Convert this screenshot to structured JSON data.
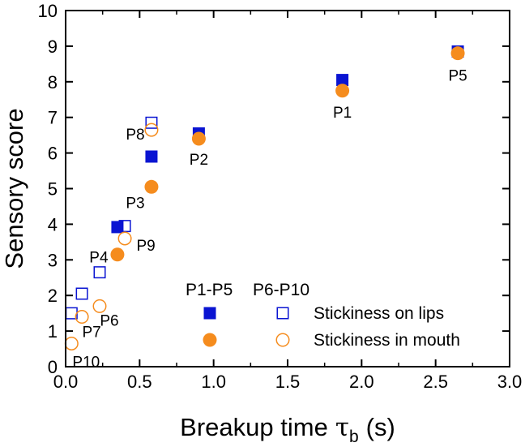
{
  "chart_data": {
    "type": "scatter",
    "xlabel": "Breakup time",
    "xlabel_symbol": "τ",
    "xlabel_subscript": "b",
    "xlabel_unit": "(s)",
    "ylabel": "Sensory score",
    "xlim": [
      0.0,
      3.0
    ],
    "ylim": [
      0,
      10
    ],
    "x_ticks": [
      "0.0",
      "0.5",
      "1.0",
      "1.5",
      "2.0",
      "2.5",
      "3.0"
    ],
    "y_ticks": [
      "0",
      "1",
      "2",
      "3",
      "4",
      "5",
      "6",
      "7",
      "8",
      "9",
      "10"
    ],
    "grid": false,
    "legend": {
      "position": "bottom-right",
      "group_headers": [
        "P1-P5",
        "P6-P10"
      ],
      "entries": [
        {
          "label": "Stickiness on lips",
          "marker": "square"
        },
        {
          "label": "Stickiness in mouth",
          "marker": "circle"
        }
      ]
    },
    "colors": {
      "lips": "#0a14d2",
      "mouth": "#f58c1e"
    },
    "series": [
      {
        "name": "Stickiness on lips",
        "group": "P1-P5",
        "marker": "square-filled",
        "points": [
          {
            "label": "P1",
            "x": 1.87,
            "y": 8.05
          },
          {
            "label": "P2",
            "x": 0.9,
            "y": 6.55
          },
          {
            "label": "P3",
            "x": 0.58,
            "y": 5.9
          },
          {
            "label": "P4",
            "x": 0.35,
            "y": 3.92
          },
          {
            "label": "P5",
            "x": 2.65,
            "y": 8.85
          }
        ]
      },
      {
        "name": "Stickiness in mouth",
        "group": "P1-P5",
        "marker": "circle-filled",
        "points": [
          {
            "label": "P1",
            "x": 1.87,
            "y": 7.75
          },
          {
            "label": "P2",
            "x": 0.9,
            "y": 6.4
          },
          {
            "label": "P3",
            "x": 0.58,
            "y": 5.05
          },
          {
            "label": "P4",
            "x": 0.35,
            "y": 3.15
          },
          {
            "label": "P5",
            "x": 2.65,
            "y": 8.8
          }
        ]
      },
      {
        "name": "Stickiness on lips",
        "group": "P6-P10",
        "marker": "square-open",
        "points": [
          {
            "label": "P6",
            "x": 0.23,
            "y": 2.65
          },
          {
            "label": "P7",
            "x": 0.11,
            "y": 2.05
          },
          {
            "label": "P8",
            "x": 0.58,
            "y": 6.85
          },
          {
            "label": "P9",
            "x": 0.4,
            "y": 3.95
          },
          {
            "label": "P10",
            "x": 0.04,
            "y": 1.5
          }
        ]
      },
      {
        "name": "Stickiness in mouth",
        "group": "P6-P10",
        "marker": "circle-open",
        "points": [
          {
            "label": "P6",
            "x": 0.23,
            "y": 1.7
          },
          {
            "label": "P7",
            "x": 0.11,
            "y": 1.4
          },
          {
            "label": "P8",
            "x": 0.58,
            "y": 6.65
          },
          {
            "label": "P9",
            "x": 0.4,
            "y": 3.6
          },
          {
            "label": "P10",
            "x": 0.04,
            "y": 0.65
          }
        ]
      }
    ],
    "point_labels": [
      "P1",
      "P2",
      "P3",
      "P4",
      "P5",
      "P6",
      "P7",
      "P8",
      "P9",
      "P10"
    ]
  }
}
